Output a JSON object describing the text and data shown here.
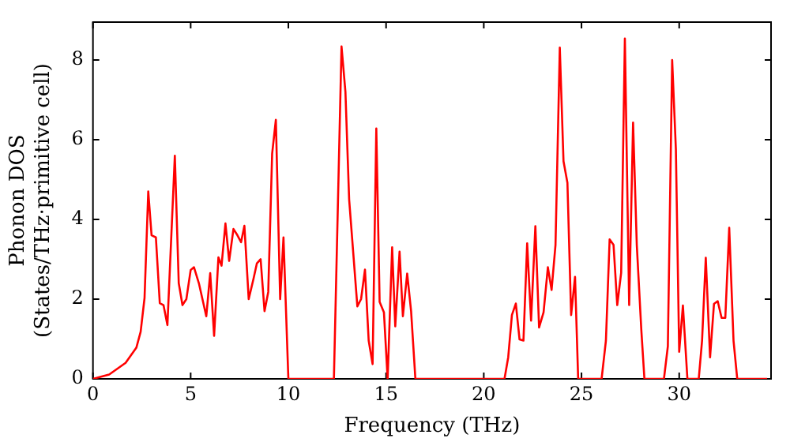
{
  "chart_data": {
    "type": "line",
    "xlabel": "Frequency (THz)",
    "ylabel": "Phonon DOS\n(States/THz·primitive cell)",
    "xlim": [
      0,
      34.7
    ],
    "ylim": [
      0,
      8.95
    ],
    "xticks": [
      0,
      5,
      10,
      15,
      20,
      25,
      30
    ],
    "yticks": [
      0,
      2,
      4,
      6,
      8
    ],
    "grid": false,
    "legend": false,
    "marker": "none",
    "line_style": "solid",
    "series": [
      {
        "color": "#ff0000",
        "x": [
          0,
          0.83,
          1.67,
          2.22,
          2.44,
          2.64,
          2.83,
          3.0,
          3.22,
          3.42,
          3.61,
          3.81,
          4.19,
          4.39,
          4.58,
          4.78,
          5.0,
          5.17,
          5.42,
          5.8,
          6.0,
          6.2,
          6.42,
          6.58,
          6.78,
          6.97,
          7.19,
          7.36,
          7.58,
          7.75,
          7.97,
          8.22,
          8.39,
          8.58,
          8.78,
          8.97,
          9.17,
          9.36,
          9.58,
          9.75,
          10.0,
          12.33,
          12.72,
          12.92,
          13.11,
          13.53,
          13.72,
          13.92,
          14.11,
          14.31,
          14.5,
          14.67,
          14.89,
          15.08,
          15.31,
          15.47,
          15.69,
          15.86,
          16.08,
          16.28,
          16.5,
          21.06,
          21.25,
          21.44,
          21.64,
          21.83,
          22.03,
          22.22,
          22.42,
          22.64,
          22.83,
          23.06,
          23.28,
          23.47,
          23.67,
          23.89,
          24.08,
          24.28,
          24.47,
          24.67,
          24.83,
          26.03,
          26.25,
          26.44,
          26.64,
          26.83,
          27.03,
          27.22,
          27.44,
          27.64,
          27.83,
          28.06,
          28.22,
          29.22,
          29.42,
          29.64,
          29.83,
          30.0,
          30.19,
          30.42,
          31.0,
          31.17,
          31.36,
          31.58,
          31.78,
          31.97,
          32.17,
          32.36,
          32.56,
          32.78,
          32.97,
          34.5
        ],
        "values": [
          0,
          0.11,
          0.4,
          0.78,
          1.18,
          2.03,
          4.7,
          3.6,
          3.55,
          1.9,
          1.85,
          1.35,
          5.6,
          2.4,
          1.85,
          2.0,
          2.73,
          2.8,
          2.4,
          1.57,
          2.65,
          1.08,
          3.05,
          2.84,
          3.9,
          2.96,
          3.76,
          3.63,
          3.43,
          3.84,
          2.0,
          2.52,
          2.9,
          3.0,
          1.7,
          2.18,
          5.65,
          6.5,
          2.0,
          3.55,
          0,
          0,
          8.34,
          7.2,
          4.5,
          1.82,
          2.0,
          2.74,
          0.96,
          0.37,
          6.28,
          1.93,
          1.67,
          0,
          3.3,
          1.32,
          3.19,
          1.57,
          2.64,
          1.7,
          0,
          0,
          0.54,
          1.6,
          1.89,
          0.99,
          0.96,
          3.4,
          1.46,
          3.83,
          1.29,
          1.67,
          2.8,
          2.23,
          3.36,
          8.31,
          5.46,
          4.92,
          1.6,
          2.56,
          0,
          0,
          0.96,
          3.5,
          3.36,
          1.85,
          2.66,
          8.54,
          1.85,
          6.43,
          3.36,
          1.24,
          0,
          0,
          0.82,
          8.0,
          5.77,
          0.68,
          1.84,
          0,
          0,
          0.96,
          3.04,
          0.54,
          1.88,
          1.95,
          1.53,
          1.53,
          3.79,
          0.96,
          0,
          0
        ]
      }
    ]
  }
}
